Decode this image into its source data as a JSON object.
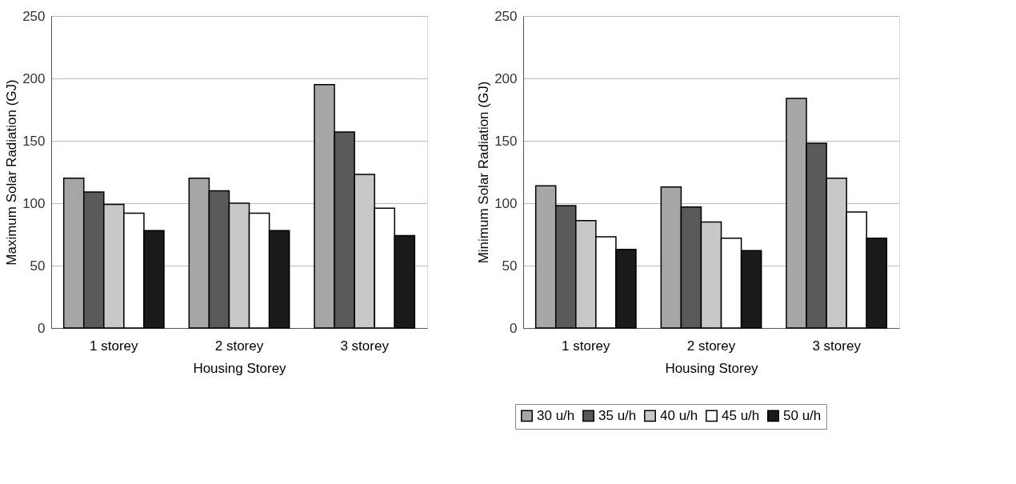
{
  "chart_data": [
    {
      "type": "bar",
      "categories": [
        "1 storey",
        "2 storey",
        "3 storey"
      ],
      "xlabel": "Housing Storey",
      "ylabel": "Maximum Solar Radiation (GJ)",
      "ylim": [
        0,
        250
      ],
      "yticks": [
        0,
        50,
        100,
        150,
        200,
        250
      ],
      "grid": "y",
      "legend": "bottom",
      "series": [
        {
          "name": "30 u/h",
          "color": "#a6a6a6",
          "values": [
            120,
            120,
            195
          ]
        },
        {
          "name": "35 u/h",
          "color": "#595959",
          "values": [
            109,
            110,
            157
          ]
        },
        {
          "name": "40 u/h",
          "color": "#c8c8c8",
          "values": [
            99,
            100,
            123
          ]
        },
        {
          "name": "45 u/h",
          "color": "#ffffff",
          "values": [
            92,
            92,
            96
          ]
        },
        {
          "name": "50 u/h",
          "color": "#1a1a1a",
          "values": [
            78,
            78,
            74
          ]
        }
      ]
    },
    {
      "type": "bar",
      "categories": [
        "1 storey",
        "2 storey",
        "3 storey"
      ],
      "xlabel": "Housing Storey",
      "ylabel": "Minimum Solar Radiation (GJ)",
      "ylim": [
        0,
        250
      ],
      "yticks": [
        0,
        50,
        100,
        150,
        200,
        250
      ],
      "grid": "y",
      "legend": "bottom",
      "series": [
        {
          "name": "30 u/h",
          "color": "#a6a6a6",
          "values": [
            114,
            113,
            184
          ]
        },
        {
          "name": "35 u/h",
          "color": "#595959",
          "values": [
            98,
            97,
            148
          ]
        },
        {
          "name": "40 u/h",
          "color": "#c8c8c8",
          "values": [
            86,
            85,
            120
          ]
        },
        {
          "name": "45 u/h",
          "color": "#ffffff",
          "values": [
            73,
            72,
            93
          ]
        },
        {
          "name": "50 u/h",
          "color": "#1a1a1a",
          "values": [
            63,
            62,
            72
          ]
        }
      ]
    }
  ]
}
